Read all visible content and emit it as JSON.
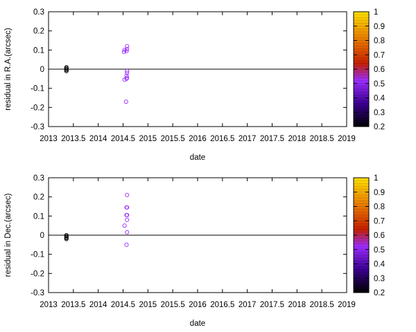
{
  "chart_data": [
    {
      "type": "scatter",
      "xlabel": "date",
      "ylabel": "residual in R.A.(arcsec)",
      "xlim": [
        2013,
        2019
      ],
      "ylim": [
        -0.3,
        0.3
      ],
      "x_ticks": [
        "2013",
        "2013.5",
        "2014",
        "2014.5",
        "2015",
        "2015.5",
        "2016",
        "2016.5",
        "2017",
        "2017.5",
        "2018",
        "2018.5",
        "2019"
      ],
      "y_ticks": [
        "-0.3",
        "-0.2",
        "-0.1",
        "0",
        "0.1",
        "0.2",
        "0.3"
      ],
      "zero_line": true,
      "colorbar": {
        "range": [
          0.2,
          1
        ],
        "ticks": [
          "0.2",
          "0.3",
          "0.4",
          "0.5",
          "0.6",
          "0.7",
          "0.8",
          "0.9",
          "1"
        ]
      },
      "points": [
        {
          "x": 2013.36,
          "y": 0.01,
          "c": 0.2
        },
        {
          "x": 2013.36,
          "y": 0.005,
          "c": 0.2
        },
        {
          "x": 2013.36,
          "y": 0.0,
          "c": 0.2
        },
        {
          "x": 2013.36,
          "y": -0.005,
          "c": 0.2
        },
        {
          "x": 2013.36,
          "y": -0.01,
          "c": 0.2
        },
        {
          "x": 2014.52,
          "y": 0.09,
          "c": 0.45
        },
        {
          "x": 2014.53,
          "y": 0.1,
          "c": 0.45
        },
        {
          "x": 2014.58,
          "y": 0.12,
          "c": 0.45
        },
        {
          "x": 2014.58,
          "y": 0.105,
          "c": 0.45
        },
        {
          "x": 2014.57,
          "y": 0.095,
          "c": 0.45
        },
        {
          "x": 2014.58,
          "y": -0.01,
          "c": 0.45
        },
        {
          "x": 2014.58,
          "y": -0.02,
          "c": 0.45
        },
        {
          "x": 2014.57,
          "y": -0.035,
          "c": 0.45
        },
        {
          "x": 2014.57,
          "y": -0.05,
          "c": 0.45
        },
        {
          "x": 2014.58,
          "y": -0.045,
          "c": 0.45
        },
        {
          "x": 2014.53,
          "y": -0.055,
          "c": 0.45
        },
        {
          "x": 2014.56,
          "y": -0.17,
          "c": 0.45
        }
      ]
    },
    {
      "type": "scatter",
      "xlabel": "date",
      "ylabel": "residual in Dec.(arcsec)",
      "xlim": [
        2013,
        2019
      ],
      "ylim": [
        -0.3,
        0.3
      ],
      "x_ticks": [
        "2013",
        "2013.5",
        "2014",
        "2014.5",
        "2015",
        "2015.5",
        "2016",
        "2016.5",
        "2017",
        "2017.5",
        "2018",
        "2018.5",
        "2019"
      ],
      "y_ticks": [
        "-0.3",
        "-0.2",
        "-0.1",
        "0",
        "0.1",
        "0.2",
        "0.3"
      ],
      "zero_line": true,
      "colorbar": {
        "range": [
          0.2,
          1
        ],
        "ticks": [
          "0.2",
          "0.3",
          "0.4",
          "0.5",
          "0.6",
          "0.7",
          "0.8",
          "0.9",
          "1"
        ]
      },
      "points": [
        {
          "x": 2013.36,
          "y": -0.005,
          "c": 0.2
        },
        {
          "x": 2013.36,
          "y": -0.01,
          "c": 0.2
        },
        {
          "x": 2013.36,
          "y": -0.015,
          "c": 0.2
        },
        {
          "x": 2013.36,
          "y": -0.02,
          "c": 0.2
        },
        {
          "x": 2013.36,
          "y": 0.0,
          "c": 0.2
        },
        {
          "x": 2014.58,
          "y": 0.21,
          "c": 0.45
        },
        {
          "x": 2014.57,
          "y": 0.145,
          "c": 0.45
        },
        {
          "x": 2014.58,
          "y": 0.145,
          "c": 0.45
        },
        {
          "x": 2014.57,
          "y": 0.105,
          "c": 0.45
        },
        {
          "x": 2014.58,
          "y": 0.105,
          "c": 0.45
        },
        {
          "x": 2014.58,
          "y": 0.08,
          "c": 0.45
        },
        {
          "x": 2014.53,
          "y": 0.05,
          "c": 0.45
        },
        {
          "x": 2014.58,
          "y": 0.015,
          "c": 0.45
        },
        {
          "x": 2014.57,
          "y": -0.05,
          "c": 0.45
        }
      ]
    }
  ],
  "colors": {
    "palette_stops": [
      "#000000",
      "#3a0090",
      "#9b2cff",
      "#c42000",
      "#e06000",
      "#f0a000",
      "#ffe000"
    ],
    "zero_line": "#000000"
  }
}
